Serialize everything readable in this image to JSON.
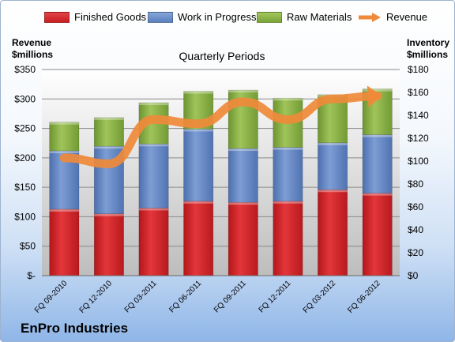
{
  "chart_data": {
    "type": "bar",
    "stacked": true,
    "title": "Quarterly Periods",
    "brand": "EnPro Industries",
    "categories": [
      "FQ 09-2010",
      "FQ 12-2010",
      "FQ 03-2011",
      "FQ 06-2011",
      "FQ 09-2011",
      "FQ 12-2011",
      "FQ 03-2012",
      "FQ 06-2012"
    ],
    "series": [
      {
        "name": "Finished Goods",
        "color": "#d9262a",
        "values": [
          58,
          54,
          59,
          65,
          64,
          65,
          75,
          72
        ]
      },
      {
        "name": "Work in Progress",
        "color": "#6b8fc9",
        "values": [
          51,
          59,
          56,
          63,
          47,
          47,
          41,
          51
        ]
      },
      {
        "name": "Raw Materials",
        "color": "#8cb443",
        "values": [
          25,
          25,
          36,
          33,
          51,
          43,
          42,
          40
        ]
      }
    ],
    "line_series": {
      "name": "Revenue",
      "color": "#ef8a3a",
      "values": [
        200,
        190,
        265,
        258,
        295,
        265,
        300,
        305
      ]
    },
    "left_axis": {
      "label_line1": "Revenue",
      "label_line2": "$millions",
      "ylim": [
        0,
        350
      ],
      "ticks": [
        "$-",
        "$50",
        "$100",
        "$150",
        "$200",
        "$250",
        "$300",
        "$350"
      ]
    },
    "right_axis": {
      "label_line1": "Inventory",
      "label_line2": "$millions",
      "ylim": [
        0,
        180
      ],
      "ticks": [
        "$0",
        "$20",
        "$40",
        "$60",
        "$80",
        "$100",
        "$120",
        "$140",
        "$160",
        "$180"
      ]
    },
    "grid": true,
    "legend_position": "top"
  }
}
